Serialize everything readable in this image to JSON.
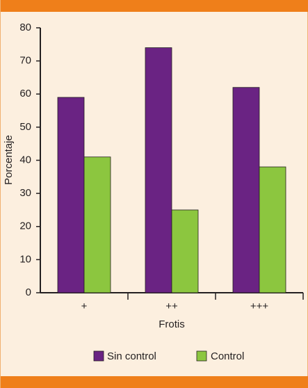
{
  "chart_data": {
    "type": "bar",
    "title": "",
    "xlabel": "Frotis",
    "ylabel": "Porcentaje",
    "categories": [
      "+",
      "++",
      "+++"
    ],
    "series": [
      {
        "name": "Sin control",
        "color": "#6a2383",
        "values": [
          59,
          74,
          62
        ]
      },
      {
        "name": "Control",
        "color": "#8cc63f",
        "values": [
          41,
          25,
          38
        ]
      }
    ],
    "ylim": [
      0,
      80
    ],
    "yticks": [
      0,
      10,
      20,
      30,
      40,
      50,
      60,
      70,
      80
    ],
    "grid": false,
    "legend_position": "bottom"
  },
  "colors": {
    "frame_band": "#ef7f1a",
    "background": "#fcefdf"
  }
}
